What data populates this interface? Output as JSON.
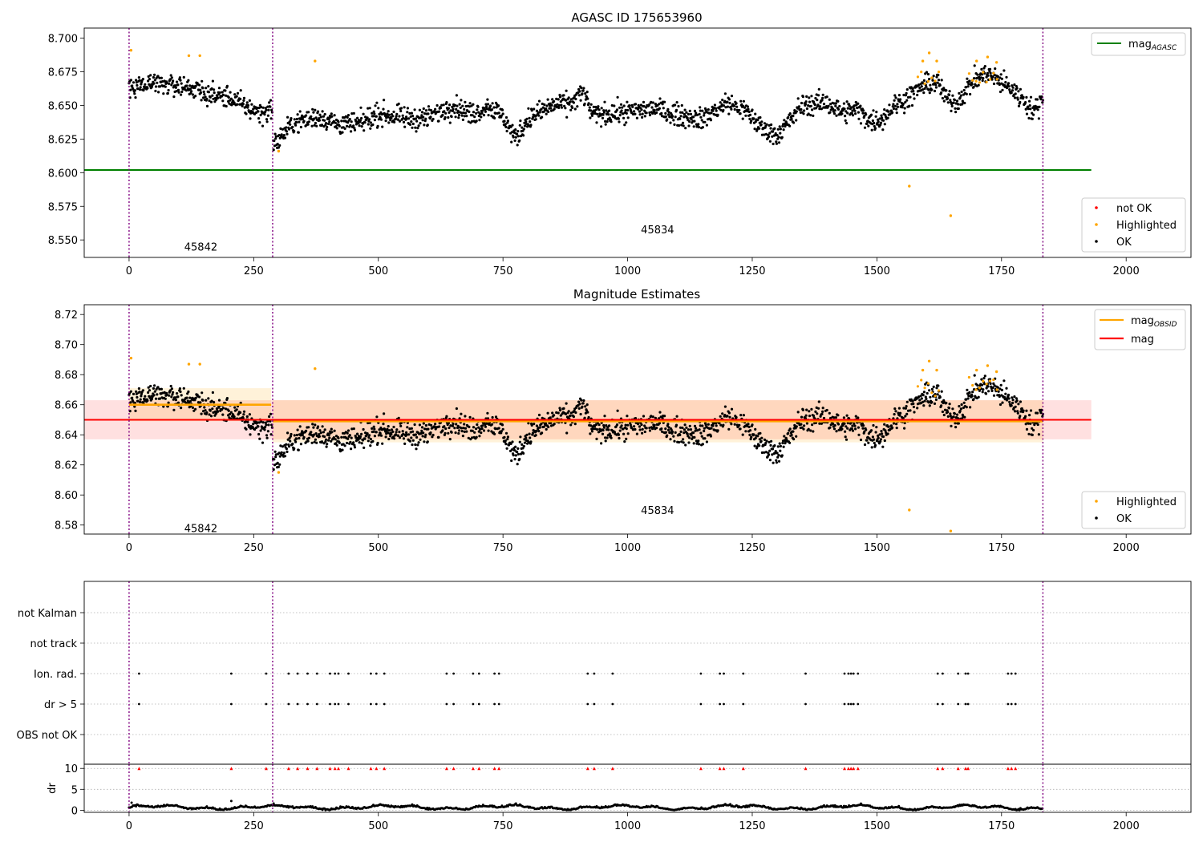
{
  "chart_data": [
    {
      "type": "scatter",
      "title": "AGASC ID 175653960",
      "xlim": [
        -90,
        2130
      ],
      "ylim": [
        8.537,
        8.7075
      ],
      "xticks": [
        "0",
        "250",
        "500",
        "750",
        "1000",
        "1250",
        "1500",
        "1750",
        "2000"
      ],
      "xtick_values": [
        0,
        250,
        500,
        750,
        1000,
        1250,
        1500,
        1750,
        2000
      ],
      "yticks": [
        "8.550",
        "8.575",
        "8.600",
        "8.625",
        "8.650",
        "8.675",
        "8.700"
      ],
      "ytick_values": [
        8.55,
        8.575,
        8.6,
        8.625,
        8.65,
        8.675,
        8.7
      ],
      "obsid_boundaries": [
        0,
        288,
        1833
      ],
      "obsid_labels": [
        {
          "text": "45842",
          "x": 144,
          "y": 8.545
        },
        {
          "text": "45834",
          "x": 1060,
          "y": 8.558
        }
      ],
      "mag_agasc": 8.602,
      "mag_agasc_xrange": [
        -90,
        1930
      ],
      "highlighted_points": [
        [
          4,
          8.691
        ],
        [
          120,
          8.687
        ],
        [
          142,
          8.687
        ],
        [
          373,
          8.683
        ],
        [
          300,
          8.616
        ],
        [
          1592,
          8.683
        ],
        [
          1605,
          8.689
        ],
        [
          1620,
          8.683
        ],
        [
          1700,
          8.683
        ],
        [
          1722,
          8.686
        ],
        [
          1740,
          8.682
        ],
        [
          1565,
          8.59
        ],
        [
          1648,
          8.568
        ]
      ],
      "highlight_segments": [
        [
          1582,
          1628,
          8.672
        ],
        [
          1685,
          1745,
          8.672
        ]
      ],
      "legend_upper": [
        {
          "label": "mag",
          "sub": "AGASC",
          "color": "#008000"
        }
      ],
      "legend_lower": [
        {
          "label": "not OK",
          "color": "#ff0000"
        },
        {
          "label": "Highlighted",
          "color": "#ffa500"
        },
        {
          "label": "OK",
          "color": "#000000"
        }
      ]
    },
    {
      "type": "scatter",
      "title": "Magnitude Estimates",
      "xlim": [
        -90,
        2130
      ],
      "ylim": [
        8.574,
        8.7265
      ],
      "xticks": [
        "0",
        "250",
        "500",
        "750",
        "1000",
        "1250",
        "1500",
        "1750",
        "2000"
      ],
      "xtick_values": [
        0,
        250,
        500,
        750,
        1000,
        1250,
        1500,
        1750,
        2000
      ],
      "yticks": [
        "8.58",
        "8.60",
        "8.62",
        "8.64",
        "8.66",
        "8.68",
        "8.70",
        "8.72"
      ],
      "ytick_values": [
        8.58,
        8.6,
        8.62,
        8.64,
        8.66,
        8.68,
        8.7,
        8.72
      ],
      "obsid_boundaries": [
        0,
        288,
        1833
      ],
      "obsid_labels": [
        {
          "text": "45842",
          "x": 144,
          "y": 8.578
        },
        {
          "text": "45834",
          "x": 1060,
          "y": 8.59
        }
      ],
      "mag": 8.65,
      "mag_band": [
        8.637,
        8.663
      ],
      "mag_band_xrange": [
        -90,
        1930
      ],
      "mag_obsid": [
        {
          "x0": 0,
          "x1": 285,
          "mag": 8.66,
          "band": [
            8.649,
            8.671
          ]
        },
        {
          "x0": 288,
          "x1": 1833,
          "mag": 8.649,
          "band": [
            8.635,
            8.663
          ]
        }
      ],
      "highlighted_points": [
        [
          4,
          8.691
        ],
        [
          120,
          8.687
        ],
        [
          142,
          8.687
        ],
        [
          373,
          8.684
        ],
        [
          300,
          8.615
        ],
        [
          1592,
          8.683
        ],
        [
          1605,
          8.689
        ],
        [
          1620,
          8.683
        ],
        [
          1700,
          8.683
        ],
        [
          1722,
          8.686
        ],
        [
          1740,
          8.682
        ],
        [
          1565,
          8.59
        ],
        [
          1648,
          8.576
        ]
      ],
      "highlight_segments": [
        [
          1582,
          1628,
          8.672
        ],
        [
          1685,
          1745,
          8.672
        ]
      ],
      "legend_upper": [
        {
          "label": "mag",
          "sub": "OBSID",
          "color": "#ffa500"
        },
        {
          "label": "mag",
          "sub": "",
          "color": "#ff0000"
        }
      ],
      "legend_lower": [
        {
          "label": "Highlighted",
          "color": "#ffa500"
        },
        {
          "label": "OK",
          "color": "#000000"
        }
      ]
    },
    {
      "type": "scatter",
      "title": "",
      "xlim": [
        -90,
        2130
      ],
      "flag_labels": [
        "not Kalman",
        "not track",
        "Ion. rad.",
        "dr > 5",
        "OBS not OK"
      ],
      "flag_events": [
        20,
        205,
        275,
        320,
        338,
        358,
        377,
        403,
        413,
        420,
        440,
        485,
        496,
        512,
        637,
        651,
        690,
        702,
        733,
        742,
        920,
        933,
        970,
        1147,
        1185,
        1193,
        1232,
        1357,
        1435,
        1443,
        1448,
        1453,
        1462,
        1622,
        1632,
        1663,
        1678,
        1683,
        1763,
        1770,
        1778
      ],
      "dr_yticks": [
        "0",
        "5",
        "10"
      ],
      "dr_ytick_values": [
        0,
        5,
        10
      ],
      "dr_ylabel": "dr",
      "dr_ylim": [
        -0.5,
        11
      ],
      "dr_clip_value": 10,
      "xticks": [
        "0",
        "250",
        "500",
        "750",
        "1000",
        "1250",
        "1500",
        "1750",
        "2000"
      ],
      "xtick_values": [
        0,
        250,
        500,
        750,
        1000,
        1250,
        1500,
        1750,
        2000
      ],
      "obsid_boundaries": [
        0,
        288,
        1833
      ]
    }
  ]
}
